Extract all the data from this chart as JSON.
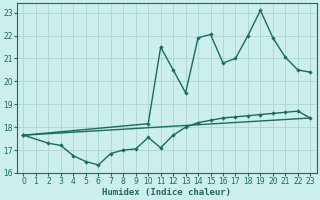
{
  "xlabel": "Humidex (Indice chaleur)",
  "bg_color": "#cceeed",
  "grid_color": "#b0d8d4",
  "line_color": "#1a6b60",
  "xlim": [
    -0.5,
    23.5
  ],
  "ylim": [
    16,
    23.4
  ],
  "xticks": [
    0,
    1,
    2,
    3,
    4,
    5,
    6,
    7,
    8,
    9,
    10,
    11,
    12,
    13,
    14,
    15,
    16,
    17,
    18,
    19,
    20,
    21,
    22,
    23
  ],
  "yticks": [
    16,
    17,
    18,
    19,
    20,
    21,
    22,
    23
  ],
  "line1_x": [
    0,
    23
  ],
  "line1_y": [
    17.65,
    18.4
  ],
  "line2_x": [
    0,
    10,
    11,
    12,
    13,
    14,
    15,
    16,
    17,
    18,
    19,
    20,
    21,
    22,
    23
  ],
  "line2_y": [
    17.65,
    18.15,
    21.5,
    20.5,
    19.5,
    21.9,
    22.05,
    20.8,
    21.0,
    22.0,
    23.1,
    21.9,
    21.05,
    20.5,
    20.4
  ],
  "line3_x": [
    0,
    2,
    3,
    4,
    5,
    6,
    7,
    8,
    9,
    10,
    11,
    12,
    13,
    14,
    15,
    16,
    17,
    18,
    19,
    20,
    21,
    22,
    23
  ],
  "line3_y": [
    17.65,
    17.3,
    17.2,
    16.75,
    16.5,
    16.35,
    16.85,
    17.0,
    17.05,
    17.55,
    17.1,
    17.65,
    18.0,
    18.2,
    18.3,
    18.4,
    18.45,
    18.5,
    18.55,
    18.6,
    18.65,
    18.7,
    18.4
  ]
}
